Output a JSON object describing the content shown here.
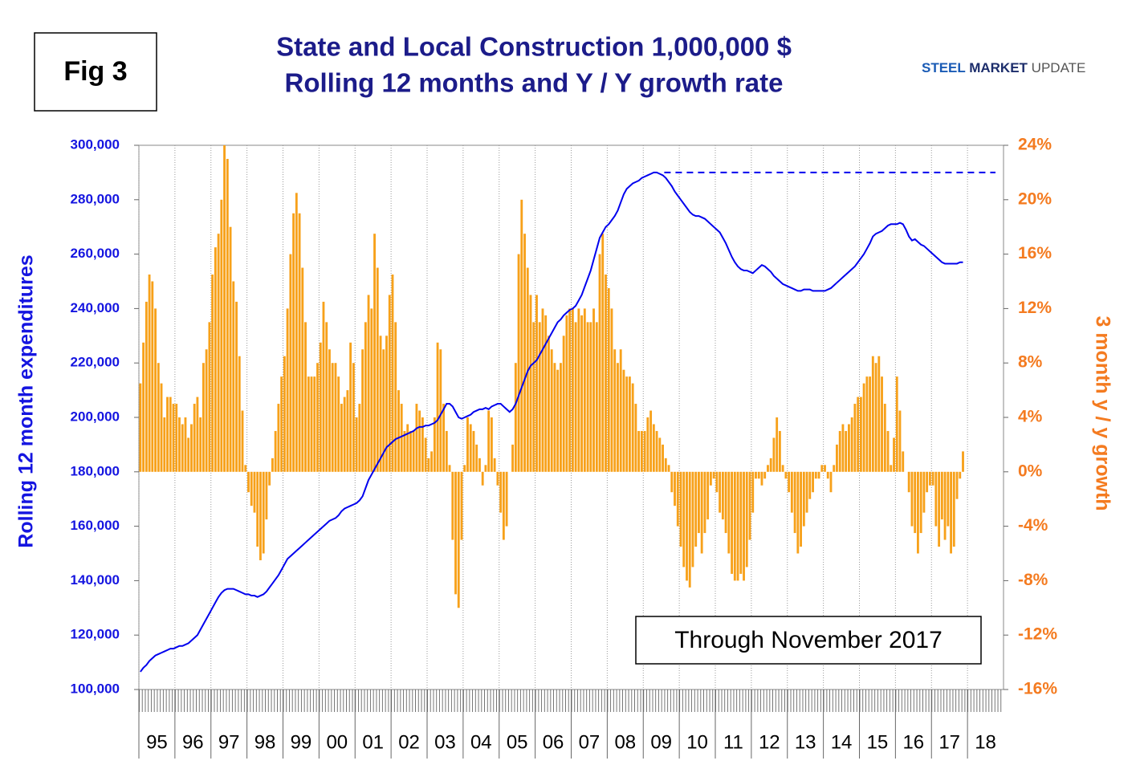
{
  "chart_data": {
    "type": "combo",
    "figure_label": "Fig 3",
    "title": "State and Local Construction 1,000,000 $",
    "subtitle": "Rolling 12 months and Y / Y growth rate",
    "logo": [
      "STEEL",
      "MARKET",
      "UPDATE"
    ],
    "annotation": "Through November 2017",
    "ylabel": "Rolling 12 month expenditures",
    "y2label": "3 month y / y growth",
    "xlim": [
      1995,
      2019
    ],
    "xticks": [
      {
        "value": 1995,
        "label": "95"
      },
      {
        "value": 1996,
        "label": "96"
      },
      {
        "value": 1997,
        "label": "97"
      },
      {
        "value": 1998,
        "label": "98"
      },
      {
        "value": 1999,
        "label": "99"
      },
      {
        "value": 2000,
        "label": "00"
      },
      {
        "value": 2001,
        "label": "01"
      },
      {
        "value": 2002,
        "label": "02"
      },
      {
        "value": 2003,
        "label": "03"
      },
      {
        "value": 2004,
        "label": "04"
      },
      {
        "value": 2005,
        "label": "05"
      },
      {
        "value": 2006,
        "label": "06"
      },
      {
        "value": 2007,
        "label": "07"
      },
      {
        "value": 2008,
        "label": "08"
      },
      {
        "value": 2009,
        "label": "09"
      },
      {
        "value": 2010,
        "label": "10"
      },
      {
        "value": 2011,
        "label": "11"
      },
      {
        "value": 2012,
        "label": "12"
      },
      {
        "value": 2013,
        "label": "13"
      },
      {
        "value": 2014,
        "label": "14"
      },
      {
        "value": 2015,
        "label": "15"
      },
      {
        "value": 2016,
        "label": "16"
      },
      {
        "value": 2017,
        "label": "17"
      },
      {
        "value": 2018,
        "label": "18"
      }
    ],
    "ylim": [
      100000,
      300000
    ],
    "yticks": [
      {
        "value": 100000,
        "label": "100,000"
      },
      {
        "value": 120000,
        "label": "120,000"
      },
      {
        "value": 140000,
        "label": "140,000"
      },
      {
        "value": 160000,
        "label": "160,000"
      },
      {
        "value": 180000,
        "label": "180,000"
      },
      {
        "value": 200000,
        "label": "200,000"
      },
      {
        "value": 220000,
        "label": "220,000"
      },
      {
        "value": 240000,
        "label": "240,000"
      },
      {
        "value": 260000,
        "label": "260,000"
      },
      {
        "value": 280000,
        "label": "280,000"
      },
      {
        "value": 300000,
        "label": "300,000"
      }
    ],
    "y2lim": [
      -16,
      24
    ],
    "y2ticks": [
      {
        "value": -16,
        "label": "-16%"
      },
      {
        "value": -12,
        "label": "-12%"
      },
      {
        "value": -8,
        "label": "-8%"
      },
      {
        "value": -4,
        "label": "-4%"
      },
      {
        "value": 0,
        "label": "0%"
      },
      {
        "value": 4,
        "label": "4%"
      },
      {
        "value": 8,
        "label": "8%"
      },
      {
        "value": 12,
        "label": "12%"
      },
      {
        "value": 16,
        "label": "16%"
      },
      {
        "value": 20,
        "label": "20%"
      },
      {
        "value": 24,
        "label": "24%"
      }
    ],
    "grid": true,
    "reference_line": 290000,
    "x": [
      1995,
      1995.083,
      1995.167,
      1995.25,
      1995.333,
      1995.417,
      1995.5,
      1995.583,
      1995.667,
      1995.75,
      1995.833,
      1995.917,
      1996,
      1996.083,
      1996.167,
      1996.25,
      1996.333,
      1996.417,
      1996.5,
      1996.583,
      1996.667,
      1996.75,
      1996.833,
      1996.917,
      1997,
      1997.083,
      1997.167,
      1997.25,
      1997.333,
      1997.417,
      1997.5,
      1997.583,
      1997.667,
      1997.75,
      1997.833,
      1997.917,
      1998,
      1998.083,
      1998.167,
      1998.25,
      1998.333,
      1998.417,
      1998.5,
      1998.583,
      1998.667,
      1998.75,
      1998.833,
      1998.917,
      1999,
      1999.083,
      1999.167,
      1999.25,
      1999.333,
      1999.417,
      1999.5,
      1999.583,
      1999.667,
      1999.75,
      1999.833,
      1999.917,
      2000,
      2000.083,
      2000.167,
      2000.25,
      2000.333,
      2000.417,
      2000.5,
      2000.583,
      2000.667,
      2000.75,
      2000.833,
      2000.917,
      2001,
      2001.083,
      2001.167,
      2001.25,
      2001.333,
      2001.417,
      2001.5,
      2001.583,
      2001.667,
      2001.75,
      2001.833,
      2001.917,
      2002,
      2002.083,
      2002.167,
      2002.25,
      2002.333,
      2002.417,
      2002.5,
      2002.583,
      2002.667,
      2002.75,
      2002.833,
      2002.917,
      2003,
      2003.083,
      2003.167,
      2003.25,
      2003.333,
      2003.417,
      2003.5,
      2003.583,
      2003.667,
      2003.75,
      2003.833,
      2003.917,
      2004,
      2004.083,
      2004.167,
      2004.25,
      2004.333,
      2004.417,
      2004.5,
      2004.583,
      2004.667,
      2004.75,
      2004.833,
      2004.917,
      2005,
      2005.083,
      2005.167,
      2005.25,
      2005.333,
      2005.417,
      2005.5,
      2005.583,
      2005.667,
      2005.75,
      2005.833,
      2005.917,
      2006,
      2006.083,
      2006.167,
      2006.25,
      2006.333,
      2006.417,
      2006.5,
      2006.583,
      2006.667,
      2006.75,
      2006.833,
      2006.917,
      2007,
      2007.083,
      2007.167,
      2007.25,
      2007.333,
      2007.417,
      2007.5,
      2007.583,
      2007.667,
      2007.75,
      2007.833,
      2007.917,
      2008,
      2008.083,
      2008.167,
      2008.25,
      2008.333,
      2008.417,
      2008.5,
      2008.583,
      2008.667,
      2008.75,
      2008.833,
      2008.917,
      2009,
      2009.083,
      2009.167,
      2009.25,
      2009.333,
      2009.417,
      2009.5,
      2009.583,
      2009.667,
      2009.75,
      2009.833,
      2009.917,
      2010,
      2010.083,
      2010.167,
      2010.25,
      2010.333,
      2010.417,
      2010.5,
      2010.583,
      2010.667,
      2010.75,
      2010.833,
      2010.917,
      2011,
      2011.083,
      2011.167,
      2011.25,
      2011.333,
      2011.417,
      2011.5,
      2011.583,
      2011.667,
      2011.75,
      2011.833,
      2011.917,
      2012,
      2012.083,
      2012.167,
      2012.25,
      2012.333,
      2012.417,
      2012.5,
      2012.583,
      2012.667,
      2012.75,
      2012.833,
      2012.917,
      2013,
      2013.083,
      2013.167,
      2013.25,
      2013.333,
      2013.417,
      2013.5,
      2013.583,
      2013.667,
      2013.75,
      2013.833,
      2013.917,
      2014,
      2014.083,
      2014.167,
      2014.25,
      2014.333,
      2014.417,
      2014.5,
      2014.583,
      2014.667,
      2014.75,
      2014.833,
      2014.917,
      2015,
      2015.083,
      2015.167,
      2015.25,
      2015.333,
      2015.417,
      2015.5,
      2015.583,
      2015.667,
      2015.75,
      2015.833,
      2015.917,
      2016,
      2016.083,
      2016.167,
      2016.25,
      2016.333,
      2016.417,
      2016.5,
      2016.583,
      2016.667,
      2016.75,
      2016.833,
      2016.917,
      2017,
      2017.083,
      2017.167,
      2017.25,
      2017.333,
      2017.417,
      2017.5,
      2017.583,
      2017.667,
      2017.75,
      2017.833
    ],
    "series": [
      {
        "type": "bar",
        "axis": "y2",
        "color": "#F7A11A",
        "values": [
          6.5,
          9.5,
          12.5,
          14.5,
          14,
          12,
          8,
          6.5,
          4,
          5.5,
          5.5,
          5,
          5,
          4,
          3.5,
          4,
          2.5,
          3.5,
          5,
          5.5,
          4,
          8,
          9,
          11,
          14.5,
          16.5,
          17.5,
          20,
          24,
          23,
          18,
          14,
          12.5,
          8.5,
          4.5,
          0.5,
          -1.5,
          -2.5,
          -3,
          -5.5,
          -6.5,
          -6,
          -3.5,
          -1,
          1,
          3,
          5,
          7,
          8.5,
          12,
          16,
          19,
          20.5,
          19,
          15,
          11,
          7,
          7,
          7,
          8,
          9.5,
          12.5,
          11,
          9,
          8,
          8,
          7,
          5,
          5.5,
          6,
          9.5,
          8,
          4,
          5,
          9,
          11,
          13,
          12,
          17.5,
          15,
          10,
          9,
          10,
          13,
          14.5,
          11,
          6,
          5,
          3,
          3.5,
          3,
          3,
          5,
          4.5,
          4,
          2.5,
          1,
          1.5,
          4,
          9.5,
          9,
          5,
          3,
          0.5,
          -5,
          -9,
          -10,
          -5,
          0.5,
          4,
          3.5,
          3,
          2,
          1,
          -1,
          0.5,
          4.5,
          4,
          1,
          -1,
          -3,
          -5,
          -4,
          0,
          2,
          8,
          16,
          20,
          17.5,
          15,
          13,
          11,
          13,
          11,
          12,
          11.5,
          10,
          9,
          8,
          7.5,
          8,
          10,
          11.5,
          12,
          12,
          11,
          12,
          11.5,
          12,
          11,
          11,
          12,
          11,
          16,
          17.5,
          14.5,
          13.5,
          12,
          9,
          8,
          9,
          7.5,
          7,
          7,
          6.5,
          5,
          3,
          3,
          3,
          4,
          4.5,
          3.5,
          3,
          2.5,
          2,
          1,
          0.5,
          -1.5,
          -2.5,
          -4,
          -5.5,
          -7,
          -8,
          -8.5,
          -7,
          -5.5,
          -4.5,
          -6,
          -4.5,
          -3.5,
          -1,
          -0.5,
          -1.5,
          -3,
          -3.5,
          -4.5,
          -6,
          -7.5,
          -8,
          -8,
          -7.5,
          -8,
          -7,
          -5,
          -3,
          -0.5,
          -0.5,
          -1,
          -0.5,
          0.5,
          1,
          2.5,
          4,
          3,
          0.5,
          -0.5,
          -1.5,
          -3,
          -4.5,
          -6,
          -5.5,
          -4,
          -3,
          -2,
          -1.5,
          -0.5,
          -0.5,
          0.5,
          0.5,
          -0.5,
          -1.5,
          0.5,
          2,
          3,
          3.5,
          3,
          3.5,
          4,
          5,
          5.5,
          5.5,
          6.5,
          7,
          7,
          8.5,
          8,
          8.5,
          7,
          5,
          3,
          0.5,
          2.5,
          7,
          4.5,
          1.5,
          0,
          -1.5,
          -4,
          -4.5,
          -6,
          -4.5,
          -3,
          -1.5,
          -1,
          -1,
          -4,
          -5.5,
          -3.5,
          -5,
          -4,
          -6,
          -5.5,
          -2,
          -0.5,
          1.5
        ]
      },
      {
        "type": "line",
        "axis": "y",
        "color": "#0000EE",
        "values": [
          106500,
          108000,
          109000,
          110500,
          111500,
          112500,
          113000,
          113500,
          114000,
          114500,
          115000,
          115000,
          115500,
          116000,
          116000,
          116500,
          117000,
          118000,
          119000,
          120000,
          122000,
          124000,
          126000,
          128000,
          130000,
          132000,
          134000,
          135500,
          136500,
          137000,
          137000,
          137000,
          136500,
          136000,
          135500,
          135000,
          135000,
          134500,
          134500,
          134000,
          134500,
          135000,
          136000,
          137500,
          139000,
          140500,
          142000,
          144000,
          146000,
          148000,
          149000,
          150000,
          151000,
          152000,
          153000,
          154000,
          155000,
          156000,
          157000,
          158000,
          159000,
          160000,
          161000,
          162000,
          162500,
          163000,
          164000,
          165500,
          166500,
          167000,
          167500,
          168000,
          168500,
          169500,
          171000,
          174000,
          177000,
          179000,
          181000,
          183000,
          185000,
          187000,
          189000,
          190000,
          191000,
          192000,
          192500,
          193000,
          193500,
          194000,
          194500,
          195000,
          196000,
          196500,
          196500,
          197000,
          197000,
          197500,
          198000,
          199000,
          201000,
          203000,
          205000,
          205000,
          204000,
          202000,
          200000,
          199500,
          200000,
          200500,
          201000,
          202000,
          202500,
          203000,
          203000,
          203500,
          203000,
          204000,
          204500,
          205000,
          205000,
          204000,
          203000,
          202000,
          203000,
          205000,
          208000,
          211000,
          214000,
          217000,
          219000,
          220000,
          221000,
          223000,
          225000,
          227000,
          229000,
          231000,
          233000,
          235000,
          236000,
          237500,
          238500,
          239500,
          240000,
          241000,
          243000,
          245000,
          248000,
          251000,
          254000,
          258000,
          262000,
          266000,
          268000,
          270000,
          271000,
          272500,
          274000,
          276000,
          279000,
          282000,
          284000,
          285000,
          286000,
          286500,
          287000,
          288000,
          288500,
          289000,
          289500,
          290000,
          290000,
          289500,
          289000,
          288000,
          286500,
          285000,
          283000,
          281500,
          280000,
          278500,
          277000,
          275500,
          274500,
          274000,
          274000,
          273500,
          273000,
          272000,
          271000,
          270000,
          269000,
          268000,
          266000,
          264000,
          261500,
          259000,
          257000,
          255500,
          254500,
          254000,
          254000,
          253500,
          253000,
          254000,
          255000,
          256000,
          255500,
          254500,
          253500,
          252000,
          251000,
          250000,
          249000,
          248500,
          248000,
          247500,
          247000,
          246500,
          246500,
          247000,
          247000,
          247000,
          246500,
          246500,
          246500,
          246500,
          246500,
          247000,
          247500,
          248500,
          249500,
          250500,
          251500,
          252500,
          253500,
          254500,
          255500,
          257000,
          258500,
          260000,
          262000,
          264000,
          266500,
          267500,
          268000,
          268500,
          269500,
          270500,
          271000,
          271000,
          271000,
          271500,
          271000,
          269000,
          266500,
          265000,
          265500,
          264500,
          263500,
          263000,
          262000,
          261000,
          260000,
          259000,
          258000,
          257000,
          256500,
          256500,
          256500,
          256500,
          256500,
          257000,
          257000
        ]
      }
    ]
  }
}
